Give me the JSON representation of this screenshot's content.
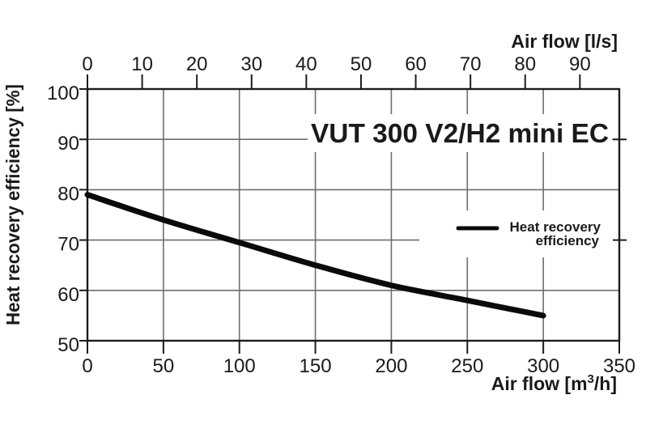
{
  "chart_data": {
    "type": "line",
    "title": "VUT 300 V2/H2 mini EC",
    "x_bottom": {
      "label": "Air flow [m³/h]",
      "label_parts": {
        "pre": "Air flow [m",
        "sup": "3",
        "post": "/h]"
      },
      "ticks": [
        0,
        50,
        100,
        150,
        200,
        250,
        300,
        350
      ],
      "range": [
        0,
        350
      ]
    },
    "x_top": {
      "label": "Air flow [l/s]",
      "ticks": [
        0,
        10,
        20,
        30,
        40,
        50,
        60,
        70,
        80,
        90
      ],
      "range": [
        0,
        97.2
      ]
    },
    "y_left": {
      "label": "Heat recovery efficiency [%]",
      "ticks": [
        100,
        90,
        80,
        70,
        60,
        50
      ],
      "range": [
        50,
        100
      ],
      "right_ticks": [
        90,
        70
      ]
    },
    "series": [
      {
        "name": "Heat recovery efficiency",
        "x": [
          0,
          50,
          100,
          150,
          200,
          250,
          300
        ],
        "y": [
          79,
          74,
          69.5,
          65,
          61,
          58,
          55
        ]
      }
    ],
    "grid": true,
    "legend_position": "middle-right"
  },
  "legend": {
    "lines": [
      "Heat recovery",
      "efficiency"
    ]
  },
  "colors": {
    "line": "#0a0a0a",
    "grid": "#6e6e6e",
    "frame": "#1c1c1c",
    "text": "#1a1a1a",
    "background": "#ffffff"
  }
}
